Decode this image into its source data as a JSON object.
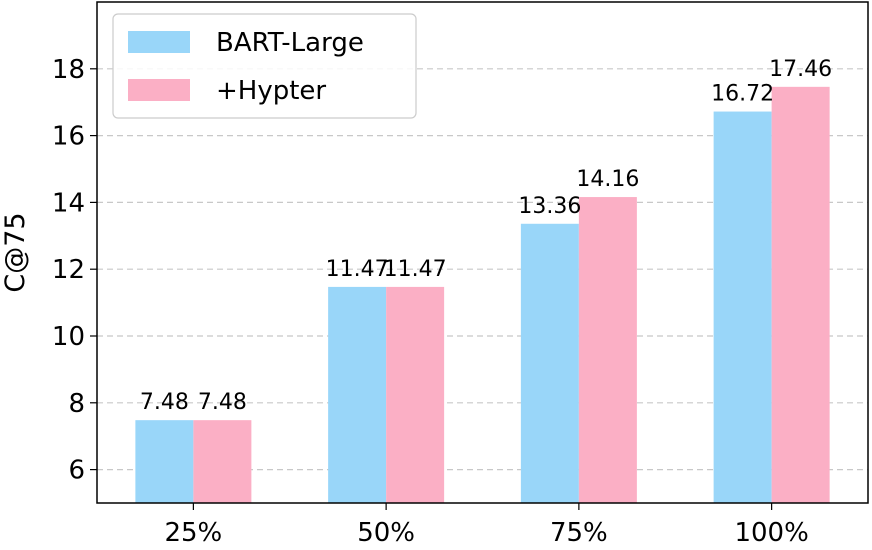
{
  "chart_data": {
    "type": "bar",
    "categories": [
      "25%",
      "50%",
      "75%",
      "100%"
    ],
    "series": [
      {
        "name": "BART-Large",
        "values": [
          7.48,
          11.47,
          13.36,
          16.72
        ],
        "color": "#99d6f9"
      },
      {
        "name": "+Hypter",
        "values": [
          7.48,
          11.47,
          14.16,
          17.46
        ],
        "color": "#fbafc5"
      }
    ],
    "data_labels": [
      [
        "7.48",
        "11.47",
        "13.36",
        "16.72"
      ],
      [
        "7.48",
        "11.47",
        "14.16",
        "17.46"
      ]
    ],
    "ylabel": "C@75",
    "ylim": [
      5,
      20
    ],
    "yticks": [
      6,
      8,
      10,
      12,
      14,
      16,
      18
    ],
    "grid": "horizontal dashed",
    "legend_position": "top-left"
  }
}
